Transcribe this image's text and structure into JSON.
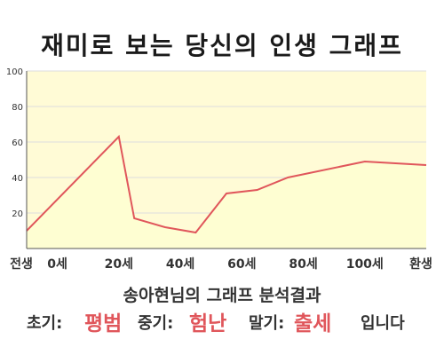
{
  "title": "재미로 보는 당신의 인생 그래프",
  "chart_data": {
    "type": "area",
    "title": "재미로 보는 당신의 인생 그래프",
    "x_tick_labels": [
      "전생",
      "0세",
      "20세",
      "40세",
      "60세",
      "80세",
      "100세",
      "환생"
    ],
    "y_ticks": [
      100,
      80,
      60,
      40,
      20
    ],
    "ylim": [
      0,
      100
    ],
    "grid": true,
    "series": [
      {
        "points": [
          {
            "x": "전생",
            "y": 10
          },
          {
            "x": "20세",
            "y": 63
          },
          {
            "x": "25세",
            "y": 17
          },
          {
            "x": "35세",
            "y": 12
          },
          {
            "x": "45세",
            "y": 9
          },
          {
            "x": "55세",
            "y": 31
          },
          {
            "x": "65세",
            "y": 33
          },
          {
            "x": "75세",
            "y": 40
          },
          {
            "x": "100세",
            "y": 49
          },
          {
            "x": "환생",
            "y": 47
          }
        ]
      }
    ],
    "colors": {
      "line": "#e0565b",
      "fill": "#fefed2",
      "grid": "#dedede",
      "axis": "#555555"
    }
  },
  "result": {
    "title": "송아현님의 그래프 분석결과",
    "early_label": "초기:",
    "early_value": "평범",
    "middle_label": "중기:",
    "middle_value": "험난",
    "late_label": "말기:",
    "late_value": "출세",
    "ending": "입니다"
  }
}
